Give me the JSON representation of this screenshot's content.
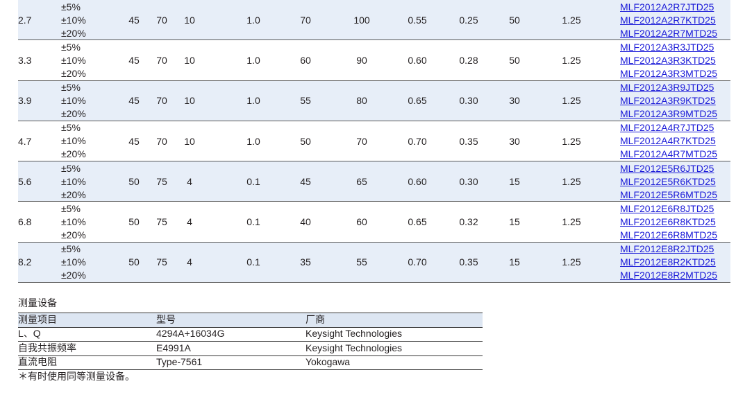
{
  "table": {
    "rows": [
      {
        "value": "2.7",
        "tolerances": [
          "±5%",
          "±10%",
          "±20%"
        ],
        "cells": [
          "45",
          "70",
          "10",
          "1.0",
          "70",
          "100",
          "0.55",
          "0.25",
          "50",
          "1.25"
        ],
        "parts": [
          "MLF2012A2R7JTD25",
          "MLF2012A2R7KTD25",
          "MLF2012A2R7MTD25"
        ]
      },
      {
        "value": "3.3",
        "tolerances": [
          "±5%",
          "±10%",
          "±20%"
        ],
        "cells": [
          "45",
          "70",
          "10",
          "1.0",
          "60",
          "90",
          "0.60",
          "0.28",
          "50",
          "1.25"
        ],
        "parts": [
          "MLF2012A3R3JTD25",
          "MLF2012A3R3KTD25",
          "MLF2012A3R3MTD25"
        ]
      },
      {
        "value": "3.9",
        "tolerances": [
          "±5%",
          "±10%",
          "±20%"
        ],
        "cells": [
          "45",
          "70",
          "10",
          "1.0",
          "55",
          "80",
          "0.65",
          "0.30",
          "30",
          "1.25"
        ],
        "parts": [
          "MLF2012A3R9JTD25",
          "MLF2012A3R9KTD25",
          "MLF2012A3R9MTD25"
        ]
      },
      {
        "value": "4.7",
        "tolerances": [
          "±5%",
          "±10%",
          "±20%"
        ],
        "cells": [
          "45",
          "70",
          "10",
          "1.0",
          "50",
          "70",
          "0.70",
          "0.35",
          "30",
          "1.25"
        ],
        "parts": [
          "MLF2012A4R7JTD25",
          "MLF2012A4R7KTD25",
          "MLF2012A4R7MTD25"
        ]
      },
      {
        "value": "5.6",
        "tolerances": [
          "±5%",
          "±10%",
          "±20%"
        ],
        "cells": [
          "50",
          "75",
          "4",
          "0.1",
          "45",
          "65",
          "0.60",
          "0.30",
          "15",
          "1.25"
        ],
        "parts": [
          "MLF2012E5R6JTD25",
          "MLF2012E5R6KTD25",
          "MLF2012E5R6MTD25"
        ]
      },
      {
        "value": "6.8",
        "tolerances": [
          "±5%",
          "±10%",
          "±20%"
        ],
        "cells": [
          "50",
          "75",
          "4",
          "0.1",
          "40",
          "60",
          "0.65",
          "0.32",
          "15",
          "1.25"
        ],
        "parts": [
          "MLF2012E6R8JTD25",
          "MLF2012E6R8KTD25",
          "MLF2012E6R8MTD25"
        ]
      },
      {
        "value": "8.2",
        "tolerances": [
          "±5%",
          "±10%",
          "±20%"
        ],
        "cells": [
          "50",
          "75",
          "4",
          "0.1",
          "35",
          "55",
          "0.70",
          "0.35",
          "15",
          "1.25"
        ],
        "parts": [
          "MLF2012E8R2JTD25",
          "MLF2012E8R2KTD25",
          "MLF2012E8R2MTD25"
        ]
      }
    ]
  },
  "equipment": {
    "title": "测量设备",
    "header": [
      "测量项目",
      "型号",
      "厂商"
    ],
    "rows": [
      [
        "L、Q",
        "4294A+16034G",
        "Keysight Technologies"
      ],
      [
        "自我共振频率",
        "E4991A",
        "Keysight Technologies"
      ],
      [
        "直流电阻",
        "Type-7561",
        "Yokogawa"
      ]
    ],
    "note": "＊有时使用同等测量设备。"
  }
}
